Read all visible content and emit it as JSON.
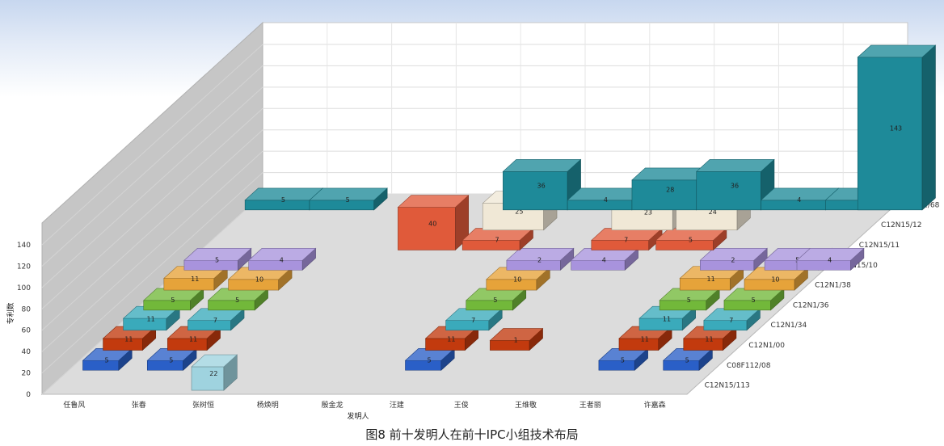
{
  "caption": "图8  前十发明人在前十IPC小组技术布局",
  "chart_data": {
    "type": "bar3d",
    "title": "图8  前十发明人在前十IPC小组技术布局",
    "xlabel": "发明人",
    "ylabel": "专利数",
    "ylim": [
      0,
      140
    ],
    "yticks": [
      0,
      20,
      40,
      60,
      80,
      100,
      120,
      140
    ],
    "categories": [
      "任鲁风",
      "张春",
      "张树恒",
      "杨焕明",
      "殷金龙",
      "汪建",
      "王俊",
      "王维敬",
      "王者丽",
      "许嘉森"
    ],
    "series_names": [
      "C12Q1/68",
      "C12N15/12",
      "C12N15/11",
      "C12N15/10",
      "C12N1/38",
      "C12N1/36",
      "C12N1/34",
      "C12N1/00",
      "C08F112/08",
      "C12N15/113"
    ],
    "series_colors": [
      "#1e8a99",
      "#f0e8d6",
      "#e05a3a",
      "#a893dd",
      "#e6a33a",
      "#72b83a",
      "#3aaabb",
      "#c23a0e",
      "#2a5fc7",
      "#9fd3df"
    ],
    "values": [
      {
        "x": "任鲁风",
        "series": "C12Q1/68",
        "value": 5
      },
      {
        "x": "张春",
        "series": "C12Q1/68",
        "value": 5
      },
      {
        "x": "殷金龙",
        "series": "C12Q1/68",
        "value": 36
      },
      {
        "x": "汪建",
        "series": "C12Q1/68",
        "value": 4
      },
      {
        "x": "王俊",
        "series": "C12Q1/68",
        "value": 28
      },
      {
        "x": "王维敬",
        "series": "C12Q1/68",
        "value": 36
      },
      {
        "x": "王者丽",
        "series": "C12Q1/68",
        "value": 4
      },
      {
        "x": "许嘉森",
        "series": "C12Q1/68",
        "value": 4
      },
      {
        "x": "许嘉森",
        "series": "C12Q1/68",
        "value": 143
      },
      {
        "x": "殷金龙",
        "series": "C12N15/12",
        "value": 25
      },
      {
        "x": "王俊",
        "series": "C12N15/12",
        "value": 23
      },
      {
        "x": "王维敬",
        "series": "C12N15/12",
        "value": 24
      },
      {
        "x": "杨焕明",
        "series": "C12N15/11",
        "value": 40
      },
      {
        "x": "殷金龙",
        "series": "C12N15/11",
        "value": 7
      },
      {
        "x": "王俊",
        "series": "C12N15/11",
        "value": 7
      },
      {
        "x": "王维敬",
        "series": "C12N15/11",
        "value": 5
      },
      {
        "x": "任鲁风",
        "series": "C12N15/10",
        "value": 5
      },
      {
        "x": "张春",
        "series": "C12N15/10",
        "value": 4
      },
      {
        "x": "汪建",
        "series": "C12N15/10",
        "value": 2
      },
      {
        "x": "王俊",
        "series": "C12N15/10",
        "value": 4
      },
      {
        "x": "王者丽",
        "series": "C12N15/10",
        "value": 2
      },
      {
        "x": "许嘉森",
        "series": "C12N15/10",
        "value": 5
      },
      {
        "x": "许嘉森",
        "series": "C12N15/10",
        "value": 4
      },
      {
        "x": "任鲁风",
        "series": "C12N1/38",
        "value": 11
      },
      {
        "x": "张春",
        "series": "C12N1/38",
        "value": 10
      },
      {
        "x": "汪建",
        "series": "C12N1/38",
        "value": 10
      },
      {
        "x": "王者丽",
        "series": "C12N1/38",
        "value": 11
      },
      {
        "x": "许嘉森",
        "series": "C12N1/38",
        "value": 10
      },
      {
        "x": "任鲁风",
        "series": "C12N1/36",
        "value": 5
      },
      {
        "x": "张春",
        "series": "C12N1/36",
        "value": 5
      },
      {
        "x": "汪建",
        "series": "C12N1/36",
        "value": 5
      },
      {
        "x": "王者丽",
        "series": "C12N1/36",
        "value": 5
      },
      {
        "x": "许嘉森",
        "series": "C12N1/36",
        "value": 5
      },
      {
        "x": "任鲁风",
        "series": "C12N1/34",
        "value": 11
      },
      {
        "x": "张春",
        "series": "C12N1/34",
        "value": 7
      },
      {
        "x": "汪建",
        "series": "C12N1/34",
        "value": 7
      },
      {
        "x": "王者丽",
        "series": "C12N1/34",
        "value": 11
      },
      {
        "x": "许嘉森",
        "series": "C12N1/34",
        "value": 7
      },
      {
        "x": "任鲁风",
        "series": "C12N1/00",
        "value": 11
      },
      {
        "x": "张春",
        "series": "C12N1/00",
        "value": 11
      },
      {
        "x": "汪建",
        "series": "C12N1/00",
        "value": 11
      },
      {
        "x": "王俊",
        "series": "C12N1/00",
        "value": 1
      },
      {
        "x": "王者丽",
        "series": "C12N1/00",
        "value": 11
      },
      {
        "x": "许嘉森",
        "series": "C12N1/00",
        "value": 11
      },
      {
        "x": "任鲁风",
        "series": "C08F112/08",
        "value": 5
      },
      {
        "x": "张春",
        "series": "C08F112/08",
        "value": 5
      },
      {
        "x": "汪建",
        "series": "C08F112/08",
        "value": 5
      },
      {
        "x": "王者丽",
        "series": "C08F112/08",
        "value": 5
      },
      {
        "x": "许嘉森",
        "series": "C08F112/08",
        "value": 5
      },
      {
        "x": "张树恒",
        "series": "C12N15/113",
        "value": 22
      }
    ]
  }
}
